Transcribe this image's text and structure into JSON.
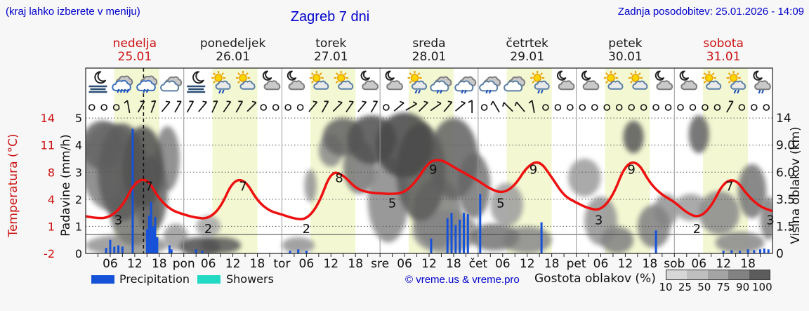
{
  "header": {
    "hint": "(kraj lahko izberete v meniju)",
    "title": "Zagreb 7 dni",
    "updated": "Zadnja posodobitev: 25.01.2026 - 14:09"
  },
  "colors": {
    "blue_text": "#0000cc",
    "red": "#cc1111",
    "temp_line": "#ee1111",
    "precip_bar": "#1652d8",
    "showers": "#22d9c4",
    "day_band": "#f4f8d2",
    "grid": "#555",
    "frame": "#222",
    "gray_scale": [
      "#d7d7d7",
      "#bfbfbf",
      "#a4a4a4",
      "#828282",
      "#5c5c5c"
    ]
  },
  "days": [
    {
      "name": "nedelja",
      "date": "25.01",
      "highlight": true
    },
    {
      "name": "ponedeljek",
      "date": "26.01",
      "highlight": false
    },
    {
      "name": "torek",
      "date": "27.01",
      "highlight": false
    },
    {
      "name": "sreda",
      "date": "28.01",
      "highlight": false
    },
    {
      "name": "četrtek",
      "date": "29.01",
      "highlight": false
    },
    {
      "name": "petek",
      "date": "30.01",
      "highlight": false
    },
    {
      "name": "sobota",
      "date": "31.01",
      "highlight": true
    }
  ],
  "axes": {
    "temp_title": "Temperatura (°C)",
    "temp_ticks": [
      "14",
      "11",
      "8",
      "4",
      "1",
      "-2"
    ],
    "precip_title": "Padavine (mm/h)",
    "precip_ticks": [
      "5",
      "4",
      "3",
      "2",
      "1",
      "0"
    ],
    "cloud_title": "Višina oblakov (km)",
    "cloud_ticks": [
      "14",
      "9.0",
      "6.0",
      "3.5",
      "1.5",
      "0"
    ],
    "day_abbr": [
      "pon",
      "tor",
      "sre",
      "čet",
      "pet",
      "sob"
    ],
    "hour_labels": [
      "06",
      "12",
      "18"
    ]
  },
  "legend": {
    "precip_label": "Precipitation",
    "showers_label": "Showers",
    "credit": "© vreme.us & vreme.pro",
    "cloud_density_label": "Gostota oblakov (%)",
    "cloud_density_ticks": [
      "10",
      "25",
      "50",
      "75",
      "90",
      "100"
    ]
  },
  "chart_data": {
    "type": "meteogram",
    "x_unit": "hours_from_sunday_00",
    "x_range": [
      0,
      168
    ],
    "current_time_hour": 14.15,
    "daylight_hours": [
      7,
      18
    ],
    "temp_axis_degC_ticks_top_to_bottom": [
      14,
      11,
      8,
      4,
      1,
      -2
    ],
    "precip_axis_mmh_ticks_top_to_bottom": [
      5,
      4,
      3,
      2,
      1,
      0
    ],
    "cloud_height_km_ticks_top_to_bottom": [
      14,
      9.0,
      6.0,
      3.5,
      1.5,
      0
    ],
    "temperature_3h": [
      2.4,
      2.1,
      2.3,
      3.6,
      6.4,
      6.9,
      4.4,
      3.1,
      2.6,
      2.2,
      2.1,
      3.4,
      6.6,
      6.7,
      4.2,
      3.0,
      2.6,
      2.1,
      2.0,
      3.8,
      7.7,
      7.3,
      5.7,
      5.2,
      5.1,
      5.0,
      5.2,
      6.6,
      8.9,
      9.1,
      8.2,
      7.4,
      6.6,
      5.6,
      5.1,
      6.0,
      8.3,
      9.0,
      7.0,
      4.8,
      4.0,
      3.3,
      3.1,
      4.8,
      8.5,
      8.9,
      6.3,
      4.9,
      4.1,
      2.8,
      2.2,
      3.5,
      6.4,
      6.8,
      4.8,
      3.5,
      3.0
    ],
    "temp_point_labels": [
      [
        8,
        3
      ],
      [
        15.5,
        7
      ],
      [
        30,
        2
      ],
      [
        38.5,
        7
      ],
      [
        54,
        2
      ],
      [
        62,
        8
      ],
      [
        75,
        5
      ],
      [
        85,
        9
      ],
      [
        101.5,
        5
      ],
      [
        109.5,
        9
      ],
      [
        125.5,
        3
      ],
      [
        133.5,
        9
      ],
      [
        149.5,
        2
      ],
      [
        157.5,
        7
      ],
      [
        167.5,
        3
      ]
    ],
    "precip_bars_mm": [
      [
        5,
        0.2
      ],
      [
        6,
        0.5
      ],
      [
        7,
        0.25
      ],
      [
        8,
        0.3
      ],
      [
        9,
        0.25
      ],
      [
        11.5,
        4.6
      ],
      [
        15,
        0.9
      ],
      [
        15.5,
        1.4
      ],
      [
        16,
        1.9
      ],
      [
        16.5,
        1.0
      ],
      [
        17,
        1.35
      ],
      [
        17.5,
        0.6
      ],
      [
        20.5,
        0.3
      ],
      [
        21,
        0.15
      ],
      [
        27,
        0.15
      ],
      [
        28.5,
        0.1
      ],
      [
        50,
        0.1
      ],
      [
        52,
        0.15
      ],
      [
        54,
        0.1
      ],
      [
        84.5,
        0.55
      ],
      [
        88.5,
        1.3
      ],
      [
        89.5,
        1.5
      ],
      [
        90.5,
        1.05
      ],
      [
        91.5,
        1.25
      ],
      [
        92.5,
        1.5
      ],
      [
        93.5,
        1.45
      ],
      [
        96.5,
        2.2
      ],
      [
        111.5,
        1.15
      ],
      [
        139.5,
        0.85
      ],
      [
        156,
        0.1
      ],
      [
        158,
        0.12
      ],
      [
        160,
        0.1
      ],
      [
        162,
        0.15
      ],
      [
        163.5,
        0.12
      ],
      [
        165,
        0.15
      ],
      [
        166,
        0.18
      ],
      [
        167,
        0.15
      ]
    ],
    "icons_6h": [
      "moon-fog",
      "rain",
      "rain-light",
      "cloudy",
      "moon-fog",
      "sun-cloud-drizzle",
      "sun-cloud",
      "moon-cloud",
      "moon-cloud",
      "sun-cloud",
      "sun-cloud",
      "moon-cloud",
      "moon-cloud",
      "sun-cloud-drizzle",
      "cloud-drizzle",
      "cloud-drizzle",
      "cloud-drizzle",
      "cloudy",
      "sun-cloud-drizzle",
      "moon-cloud",
      "moon-cloud",
      "sun-cloud",
      "sun-cloud",
      "moon-cloud",
      "moon-cloud",
      "sun-cloud",
      "sun-cloud-drizzle",
      "moon-cloud-drizzle"
    ],
    "wind_3h": [
      "c",
      "c",
      "c",
      "b100",
      "b60",
      "b70",
      "b50",
      "b60",
      "b60",
      "b50",
      "b65",
      "b55",
      "b60",
      "b45",
      "c",
      "c",
      "c",
      "c",
      "b50",
      "b60",
      "b45",
      "b55",
      "b50",
      "b60",
      "c",
      "b40",
      "b30",
      "b45",
      "b35",
      "b50",
      "b40",
      "b90",
      "c",
      "b120",
      "b135",
      "b130",
      "b100",
      "c",
      "c",
      "c",
      "c",
      "c",
      "c",
      "c",
      "c",
      "c",
      "c",
      "c",
      "c",
      "c",
      "c",
      "c",
      "b60",
      "c",
      "c",
      "c"
    ],
    "cloud_blobs_x_lvl_rx_rl_gray": [
      [
        6,
        3.2,
        7,
        1.6,
        55
      ],
      [
        4,
        4.0,
        5,
        0.9,
        70
      ],
      [
        9,
        3.0,
        6,
        1.8,
        75
      ],
      [
        14,
        3.2,
        5,
        1.5,
        80
      ],
      [
        16,
        2.2,
        4,
        1.4,
        70
      ],
      [
        12,
        1.5,
        6,
        1.2,
        60
      ],
      [
        20,
        3.5,
        3,
        1.2,
        55
      ],
      [
        10,
        0.3,
        10,
        0.4,
        45
      ],
      [
        22,
        0.6,
        3,
        0.5,
        40
      ],
      [
        28,
        0.25,
        5,
        0.35,
        80
      ],
      [
        33,
        0.3,
        5,
        0.3,
        75
      ],
      [
        30,
        1.0,
        3,
        0.4,
        35
      ],
      [
        52,
        0.3,
        4,
        0.3,
        45
      ],
      [
        55,
        2.5,
        1.5,
        0.6,
        45
      ],
      [
        63,
        4.3,
        5,
        0.7,
        70
      ],
      [
        60,
        3.8,
        3,
        0.6,
        50
      ],
      [
        70,
        4.2,
        6,
        0.9,
        80
      ],
      [
        67,
        3.2,
        4,
        1.0,
        60
      ],
      [
        74,
        2.0,
        5,
        1.6,
        50
      ],
      [
        78,
        4.0,
        7,
        1.2,
        85
      ],
      [
        82,
        3.0,
        6,
        1.8,
        75
      ],
      [
        86,
        1.5,
        6,
        1.3,
        55
      ],
      [
        90,
        3.5,
        6,
        1.5,
        70
      ],
      [
        88,
        0.8,
        8,
        0.8,
        45
      ],
      [
        95,
        2.5,
        4,
        1.2,
        60
      ],
      [
        100,
        0.6,
        6,
        0.5,
        60
      ],
      [
        103,
        1.8,
        4,
        0.8,
        40
      ],
      [
        108,
        0.5,
        6,
        0.5,
        50
      ],
      [
        122,
        2.8,
        4,
        0.7,
        40
      ],
      [
        126,
        1.2,
        4,
        0.9,
        45
      ],
      [
        130,
        0.5,
        4,
        0.5,
        55
      ],
      [
        134,
        4.3,
        2.5,
        0.6,
        75
      ],
      [
        139,
        1.0,
        4,
        0.8,
        55
      ],
      [
        142,
        1.6,
        3,
        0.6,
        45
      ],
      [
        150,
        4.4,
        2.5,
        0.7,
        70
      ],
      [
        148,
        1.7,
        4,
        0.5,
        40
      ],
      [
        155,
        1.5,
        5,
        0.8,
        50
      ],
      [
        160,
        0.4,
        6,
        0.4,
        50
      ],
      [
        163,
        2.3,
        3.5,
        1.0,
        60
      ],
      [
        167,
        1.3,
        2,
        0.8,
        55
      ]
    ]
  }
}
